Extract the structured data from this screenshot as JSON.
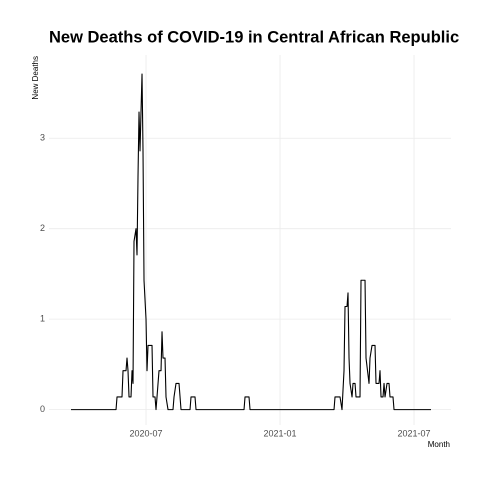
{
  "chart_data": {
    "type": "line",
    "title": "New Deaths of COVID-19 in Central African Republic",
    "x_label": "Month",
    "y_label": "New Deaths",
    "color": "#000000",
    "grid": true,
    "xlim": [
      2020.138,
      2021.638
    ],
    "ylim": [
      -0.17,
      3.92
    ],
    "xticks": [
      {
        "value": 2020.5,
        "label": "2020-07"
      },
      {
        "value": 2021.0,
        "label": "2021-01"
      },
      {
        "value": 2021.5,
        "label": "2021-07"
      }
    ],
    "yticks": [
      0,
      1,
      2,
      3
    ],
    "x": [
      2020.2201,
      2020.3881,
      2020.3918,
      2020.4104,
      2020.4142,
      2020.4254,
      2020.4291,
      2020.4328,
      2020.4366,
      2020.444,
      2020.4478,
      2020.4515,
      2020.4552,
      2020.4627,
      2020.4664,
      2020.4701,
      2020.4739,
      2020.4776,
      2020.4813,
      2020.4851,
      2020.4888,
      2020.4925,
      2020.5,
      2020.5037,
      2020.5075,
      2020.5224,
      2020.5261,
      2020.5336,
      2020.5373,
      2020.541,
      2020.5485,
      2020.556,
      2020.5597,
      2020.5634,
      2020.5709,
      2020.5746,
      2020.5821,
      2020.6007,
      2020.6045,
      2020.6119,
      2020.6231,
      2020.6306,
      2020.6642,
      2020.6679,
      2020.6828,
      2020.6866,
      2020.8657,
      2020.8694,
      2020.8843,
      2020.8881,
      2021.2015,
      2021.2052,
      2021.2239,
      2021.2313,
      2021.2388,
      2021.2425,
      2021.25,
      2021.2537,
      2021.2575,
      2021.2612,
      2021.2687,
      2021.2724,
      2021.2799,
      2021.2836,
      2021.2985,
      2021.3022,
      2021.3172,
      2021.3209,
      2021.3321,
      2021.3358,
      2021.3433,
      2021.3545,
      2021.3582,
      2021.3694,
      2021.3731,
      2021.3769,
      2021.3843,
      2021.3881,
      2021.3918,
      2021.3993,
      2021.4067,
      2021.4104,
      2021.4216,
      2021.4254,
      2021.5634
    ],
    "values": [
      0,
      0,
      0.14,
      0.14,
      0.43,
      0.43,
      0.57,
      0.43,
      0.14,
      0.14,
      0.43,
      0.29,
      1.86,
      2.0,
      1.71,
      2.57,
      3.29,
      2.86,
      3.29,
      3.71,
      2.86,
      1.43,
      1.0,
      0.43,
      0.71,
      0.71,
      0.14,
      0.14,
      0,
      0.14,
      0.43,
      0.43,
      0.86,
      0.57,
      0.57,
      0.14,
      0,
      0,
      0.14,
      0.29,
      0.29,
      0,
      0,
      0.14,
      0.14,
      0,
      0,
      0.14,
      0.14,
      0,
      0,
      0.14,
      0.14,
      0,
      0.43,
      1.14,
      1.14,
      1.29,
      0.57,
      0.29,
      0.14,
      0.29,
      0.29,
      0.14,
      0.14,
      1.43,
      1.43,
      0.57,
      0.29,
      0.57,
      0.71,
      0.71,
      0.29,
      0.29,
      0.43,
      0.14,
      0.14,
      0.29,
      0.14,
      0.29,
      0.29,
      0.14,
      0.14,
      0,
      0
    ]
  }
}
